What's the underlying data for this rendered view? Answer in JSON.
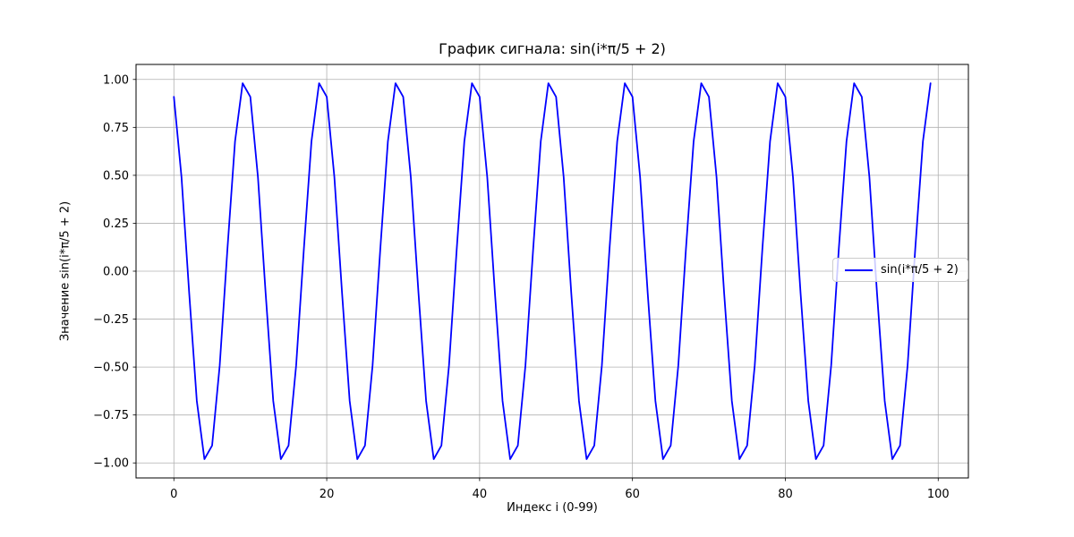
{
  "figure": {
    "background": "#ffffff"
  },
  "chart_data": {
    "type": "line",
    "title": "График сигнала: sin(i*π/5 + 2)",
    "xlabel": "Индекс i (0-99)",
    "ylabel": "Значение sin(i*π/5 + 2)",
    "grid": true,
    "legend": {
      "position": "center right",
      "entries": [
        {
          "label": "sin(i*π/5 + 2)",
          "color": "#0000ff"
        }
      ]
    },
    "xlim": [
      -4.95,
      103.95
    ],
    "ylim": [
      -1.0783,
      1.0783
    ],
    "xticks": {
      "values": [
        0,
        20,
        40,
        60,
        80,
        100
      ],
      "labels": [
        "0",
        "20",
        "40",
        "60",
        "80",
        "100"
      ]
    },
    "yticks": {
      "values": [
        1.0,
        0.75,
        0.5,
        0.25,
        0.0,
        -0.25,
        -0.5,
        -0.75,
        -1.0
      ],
      "labels": [
        "1.00",
        "0.75",
        "0.50",
        "0.25",
        "0.00",
        "−0.25",
        "−0.50",
        "−0.75",
        "−1.00"
      ]
    },
    "colors": {
      "line": "#0000ff",
      "grid": "#b0b0b0",
      "spine": "#000000",
      "text": "#000000"
    },
    "series": [
      {
        "name": "sin(i*π/5 + 2)",
        "color": "#0000ff",
        "x": [
          0,
          1,
          2,
          3,
          4,
          5,
          6,
          7,
          8,
          9,
          10,
          11,
          12,
          13,
          14,
          15,
          16,
          17,
          18,
          19,
          20,
          21,
          22,
          23,
          24,
          25,
          26,
          27,
          28,
          29,
          30,
          31,
          32,
          33,
          34,
          35,
          36,
          37,
          38,
          39,
          40,
          41,
          42,
          43,
          44,
          45,
          46,
          47,
          48,
          49,
          50,
          51,
          52,
          53,
          54,
          55,
          56,
          57,
          58,
          59,
          60,
          61,
          62,
          63,
          64,
          65,
          66,
          67,
          68,
          69,
          70,
          71,
          72,
          73,
          74,
          75,
          76,
          77,
          78,
          79,
          80,
          81,
          82,
          83,
          84,
          85,
          86,
          87,
          88,
          89,
          90,
          91,
          92,
          93,
          94,
          95,
          96,
          97,
          98,
          99
        ],
        "y": [
          0.9093,
          0.491,
          -0.1148,
          -0.6768,
          -0.9802,
          -0.9093,
          -0.491,
          0.1148,
          0.6768,
          0.9802,
          0.9093,
          0.491,
          -0.1148,
          -0.6768,
          -0.9802,
          -0.9093,
          -0.491,
          0.1148,
          0.6768,
          0.9802,
          0.9093,
          0.491,
          -0.1148,
          -0.6768,
          -0.9802,
          -0.9093,
          -0.491,
          0.1148,
          0.6768,
          0.9802,
          0.9093,
          0.491,
          -0.1148,
          -0.6768,
          -0.9802,
          -0.9093,
          -0.491,
          0.1148,
          0.6768,
          0.9802,
          0.9093,
          0.491,
          -0.1148,
          -0.6768,
          -0.9802,
          -0.9093,
          -0.491,
          0.1148,
          0.6768,
          0.9802,
          0.9093,
          0.491,
          -0.1148,
          -0.6768,
          -0.9802,
          -0.9093,
          -0.491,
          0.1148,
          0.6768,
          0.9802,
          0.9093,
          0.491,
          -0.1148,
          -0.6768,
          -0.9802,
          -0.9093,
          -0.491,
          0.1148,
          0.6768,
          0.9802,
          0.9093,
          0.491,
          -0.1148,
          -0.6768,
          -0.9802,
          -0.9093,
          -0.491,
          0.1148,
          0.6768,
          0.9802,
          0.9093,
          0.491,
          -0.1148,
          -0.6768,
          -0.9802,
          -0.9093,
          -0.491,
          0.1148,
          0.6768,
          0.9802,
          0.9093,
          0.491,
          -0.1148,
          -0.6768,
          -0.9802,
          -0.9093,
          -0.491,
          0.1148,
          0.6768,
          0.9802
        ]
      }
    ]
  }
}
